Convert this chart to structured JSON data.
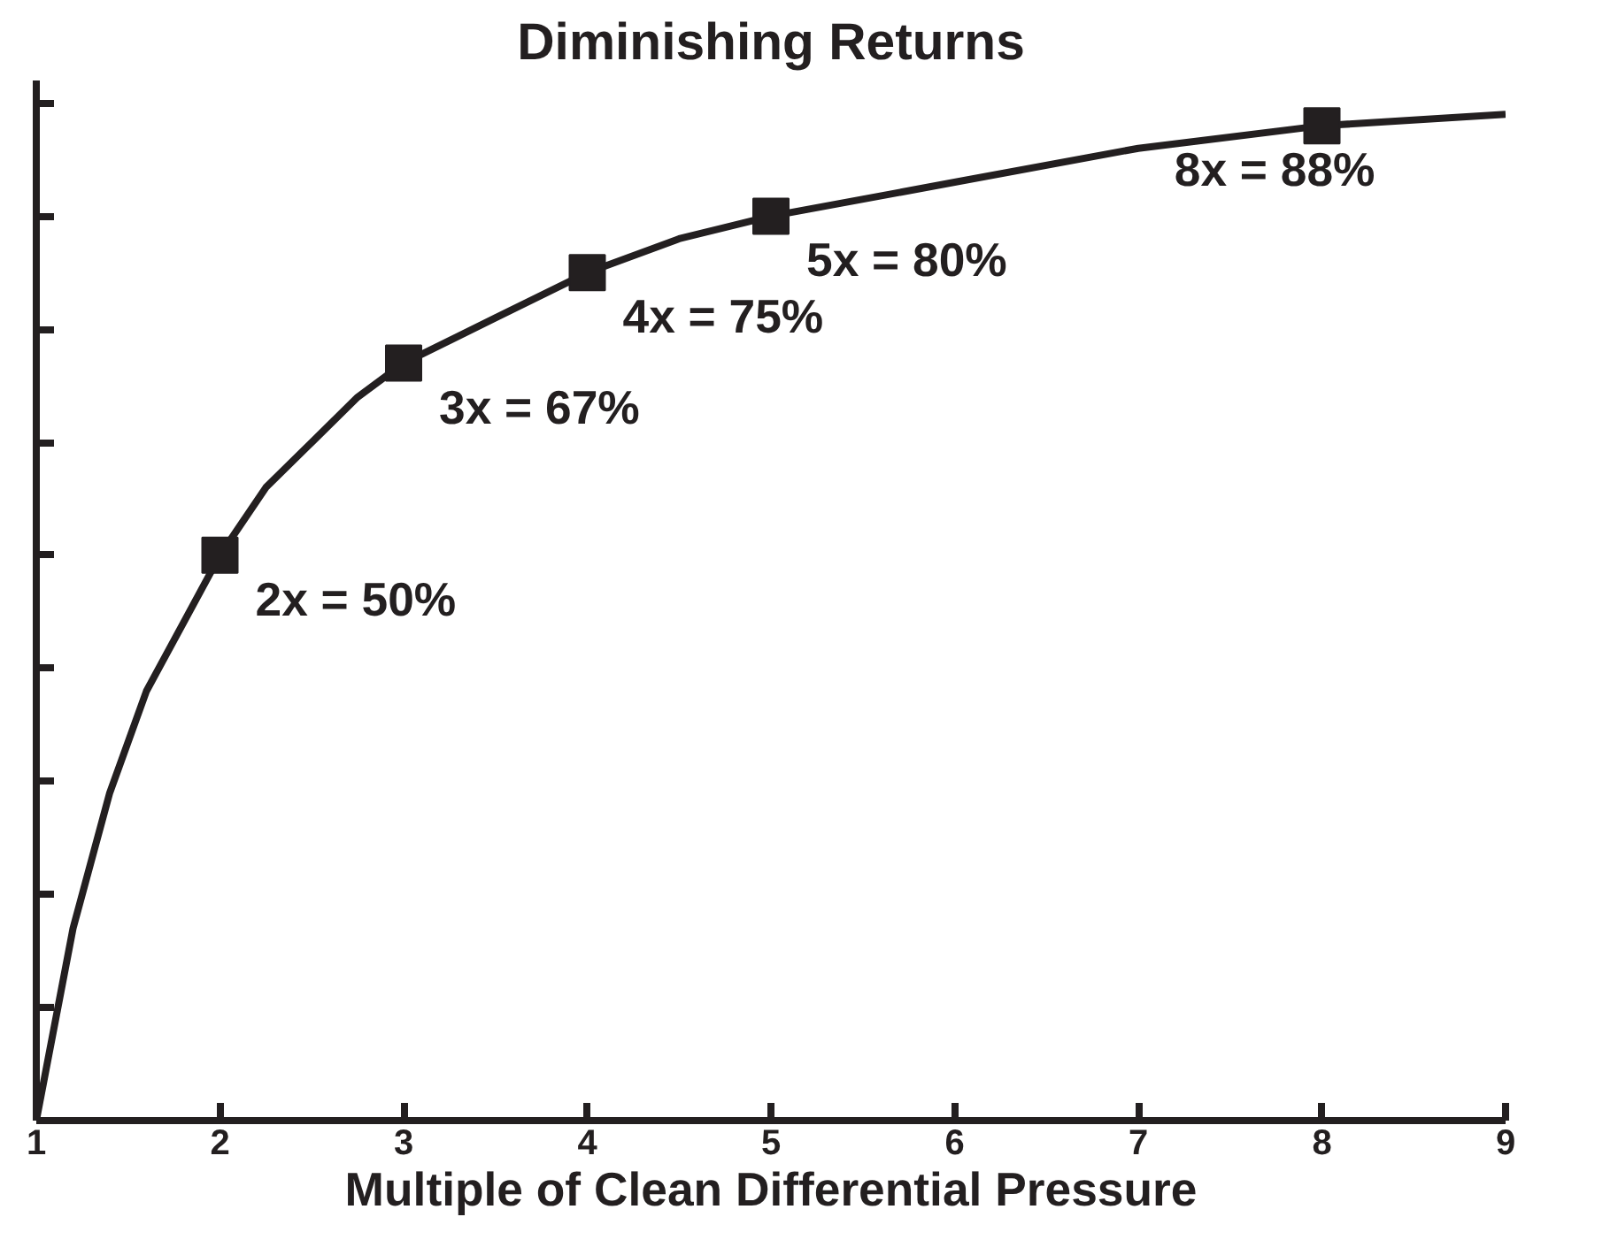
{
  "chart_data": {
    "type": "line",
    "title": "Diminishing Returns",
    "xlabel": "Multiple of Clean Differential Pressure",
    "xlim": [
      1,
      9
    ],
    "xticks": [
      1,
      2,
      3,
      4,
      5,
      6,
      7,
      8,
      9
    ],
    "ylim": [
      0,
      92
    ],
    "yticks": [
      {
        "value": 0,
        "label": null
      },
      {
        "value": 10,
        "label": null
      },
      {
        "value": 20,
        "label": null
      },
      {
        "value": 30,
        "label": null
      },
      {
        "value": 40,
        "label": null
      },
      {
        "value": 50,
        "label": null
      },
      {
        "value": 60,
        "label": null
      },
      {
        "value": 70,
        "label": null
      },
      {
        "value": 80,
        "label": null
      },
      {
        "value": 90,
        "label": null
      }
    ],
    "tick_labels": "x",
    "grid": false,
    "series": [
      {
        "color": "#231f20",
        "marker": "none",
        "x": [
          1,
          1.2,
          1.4,
          1.6,
          1.8,
          2,
          2.25,
          2.5,
          2.75,
          3,
          3.5,
          4,
          4.5,
          5,
          6,
          7,
          8,
          9
        ],
        "values": [
          0,
          17,
          29,
          38,
          44,
          50,
          56,
          60,
          64,
          67,
          71,
          75,
          78,
          80,
          83,
          86,
          88,
          89
        ]
      },
      {
        "type": "scatter",
        "color": "#231f20",
        "marker": "square",
        "x": [
          2,
          3,
          4,
          5,
          8
        ],
        "values": [
          50,
          67,
          75,
          80,
          88
        ],
        "value_labels": [
          "2x = 50%",
          "3x = 67%",
          "4x = 75%",
          "5x = 80%",
          "8x = 88%"
        ]
      }
    ]
  }
}
